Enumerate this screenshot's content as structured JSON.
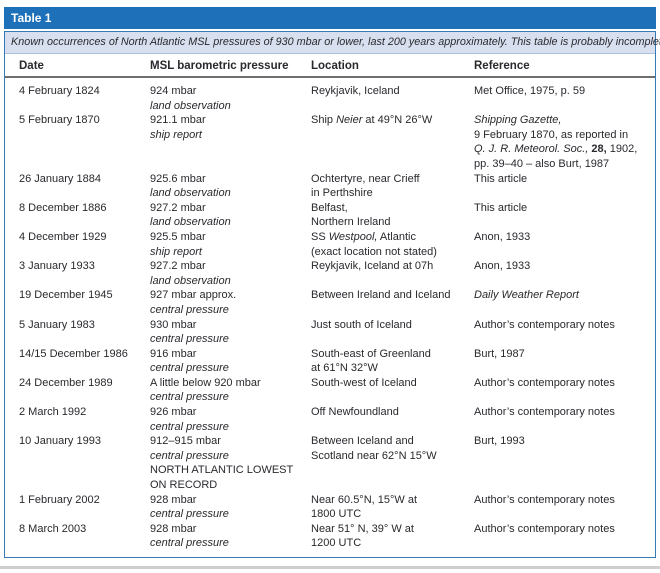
{
  "colors": {
    "title_bar_blue": "#1E70B8",
    "border_blue": "#3579B5",
    "caption_bg": "#D8E0F0",
    "header_rule_grey": "#6F6F6F",
    "text": "#29292E",
    "page_line_grey": "#CFCFCF"
  },
  "table": {
    "title": "Table 1",
    "caption": "Known occurrences of North Atlantic MSL pressures of 930 mbar or lower, last 200 years approximately. This table is probably incomplete.",
    "columns": [
      "Date",
      "MSL barometric pressure",
      "Location",
      "Reference"
    ],
    "rows": [
      {
        "date": "4 February 1824",
        "pressure": [
          [
            {
              "t": "924 mbar"
            }
          ],
          [
            {
              "t": "land observation",
              "s": "i"
            }
          ]
        ],
        "location": [
          [
            {
              "t": "Reykjavik, Iceland"
            }
          ]
        ],
        "reference": [
          [
            {
              "t": "Met Office, 1975, p. 59"
            }
          ]
        ]
      },
      {
        "date": "5 February 1870",
        "pressure": [
          [
            {
              "t": "921.1 mbar"
            }
          ],
          [
            {
              "t": "ship report",
              "s": "i"
            }
          ]
        ],
        "location": [
          [
            {
              "t": "Ship "
            },
            {
              "t": "Neier",
              "s": "i"
            },
            {
              "t": " at 49°N 26°W"
            }
          ]
        ],
        "reference": [
          [
            {
              "t": "Shipping Gazette,",
              "s": "i"
            }
          ],
          [
            {
              "t": "9 February 1870, as reported in"
            }
          ],
          [
            {
              "t": "Q. J. R. Meteorol. Soc., ",
              "s": "i"
            },
            {
              "t": "28,",
              "s": "b"
            },
            {
              "t": " 1902,"
            }
          ],
          [
            {
              "t": "pp. 39–40 – also Burt, 1987"
            }
          ]
        ]
      },
      {
        "date": "26 January 1884",
        "pressure": [
          [
            {
              "t": "925.6 mbar"
            }
          ],
          [
            {
              "t": "land observation",
              "s": "i"
            }
          ]
        ],
        "location": [
          [
            {
              "t": "Ochtertyre, near Crieff"
            }
          ],
          [
            {
              "t": "in Perthshire"
            }
          ]
        ],
        "reference": [
          [
            {
              "t": "This article"
            }
          ]
        ]
      },
      {
        "date": "8 December 1886",
        "pressure": [
          [
            {
              "t": "927.2 mbar"
            }
          ],
          [
            {
              "t": "land observation",
              "s": "i"
            }
          ]
        ],
        "location": [
          [
            {
              "t": "Belfast,"
            }
          ],
          [
            {
              "t": "Northern Ireland"
            }
          ]
        ],
        "reference": [
          [
            {
              "t": "This article"
            }
          ]
        ]
      },
      {
        "date": "4 December 1929",
        "pressure": [
          [
            {
              "t": "925.5 mbar"
            }
          ],
          [
            {
              "t": "ship report",
              "s": "i"
            }
          ]
        ],
        "location": [
          [
            {
              "t": "SS "
            },
            {
              "t": "Westpool,",
              "s": "i"
            },
            {
              "t": " Atlantic"
            }
          ],
          [
            {
              "t": "(exact location not stated)"
            }
          ]
        ],
        "reference": [
          [
            {
              "t": "Anon, 1933"
            }
          ]
        ]
      },
      {
        "date": "3 January 1933",
        "pressure": [
          [
            {
              "t": "927.2 mbar"
            }
          ],
          [
            {
              "t": "land observation",
              "s": "i"
            }
          ]
        ],
        "location": [
          [
            {
              "t": "Reykjavik, Iceland at 07h"
            }
          ]
        ],
        "reference": [
          [
            {
              "t": "Anon, 1933"
            }
          ]
        ]
      },
      {
        "date": "19 December 1945",
        "pressure": [
          [
            {
              "t": "927 mbar approx."
            }
          ],
          [
            {
              "t": "central pressure",
              "s": "i"
            }
          ]
        ],
        "location": [
          [
            {
              "t": "Between Ireland and Iceland"
            }
          ]
        ],
        "reference": [
          [
            {
              "t": "Daily Weather Report",
              "s": "i"
            }
          ]
        ]
      },
      {
        "date": "5 January 1983",
        "pressure": [
          [
            {
              "t": "930 mbar"
            }
          ],
          [
            {
              "t": "central pressure",
              "s": "i"
            }
          ]
        ],
        "location": [
          [
            {
              "t": "Just south of Iceland"
            }
          ]
        ],
        "reference": [
          [
            {
              "t": "Author’s contemporary notes"
            }
          ]
        ]
      },
      {
        "date": "14/15 December 1986",
        "pressure": [
          [
            {
              "t": "916 mbar"
            }
          ],
          [
            {
              "t": "central pressure",
              "s": "i"
            }
          ]
        ],
        "location": [
          [
            {
              "t": "South-east of Greenland"
            }
          ],
          [
            {
              "t": "at 61°N 32°W"
            }
          ]
        ],
        "reference": [
          [
            {
              "t": "Burt, 1987"
            }
          ]
        ]
      },
      {
        "date": "24 December 1989",
        "pressure": [
          [
            {
              "t": "A little below 920 mbar"
            }
          ],
          [
            {
              "t": "central pressure",
              "s": "i"
            }
          ]
        ],
        "location": [
          [
            {
              "t": "South-west of Iceland"
            }
          ]
        ],
        "reference": [
          [
            {
              "t": "Author’s contemporary notes"
            }
          ]
        ]
      },
      {
        "date": "2 March 1992",
        "pressure": [
          [
            {
              "t": "926 mbar"
            }
          ],
          [
            {
              "t": "central pressure",
              "s": "i"
            }
          ]
        ],
        "location": [
          [
            {
              "t": "Off Newfoundland"
            }
          ]
        ],
        "reference": [
          [
            {
              "t": "Author’s contemporary notes"
            }
          ]
        ]
      },
      {
        "date": "10 January 1993",
        "pressure": [
          [
            {
              "t": "912–915 mbar"
            }
          ],
          [
            {
              "t": "central pressure",
              "s": "i"
            }
          ],
          [
            {
              "t": "NORTH ATLANTIC LOWEST"
            }
          ],
          [
            {
              "t": "ON RECORD"
            }
          ]
        ],
        "location": [
          [
            {
              "t": "Between Iceland and"
            }
          ],
          [
            {
              "t": "Scotland near 62°N 15°W"
            }
          ]
        ],
        "reference": [
          [
            {
              "t": "Burt, 1993"
            }
          ]
        ]
      },
      {
        "date": "1 February 2002",
        "pressure": [
          [
            {
              "t": "928 mbar"
            }
          ],
          [
            {
              "t": "central pressure",
              "s": "i"
            }
          ]
        ],
        "location": [
          [
            {
              "t": "Near 60.5°N, 15°W at"
            }
          ],
          [
            {
              "t": "1800 UTC"
            }
          ]
        ],
        "reference": [
          [
            {
              "t": "Author’s contemporary notes"
            }
          ]
        ]
      },
      {
        "date": "8 March 2003",
        "pressure": [
          [
            {
              "t": "928 mbar"
            }
          ],
          [
            {
              "t": "central pressure",
              "s": "i"
            }
          ]
        ],
        "location": [
          [
            {
              "t": "Near 51° N, 39° W at"
            }
          ],
          [
            {
              "t": "1200 UTC"
            }
          ]
        ],
        "reference": [
          [
            {
              "t": "Author’s contemporary notes"
            }
          ]
        ]
      }
    ]
  }
}
